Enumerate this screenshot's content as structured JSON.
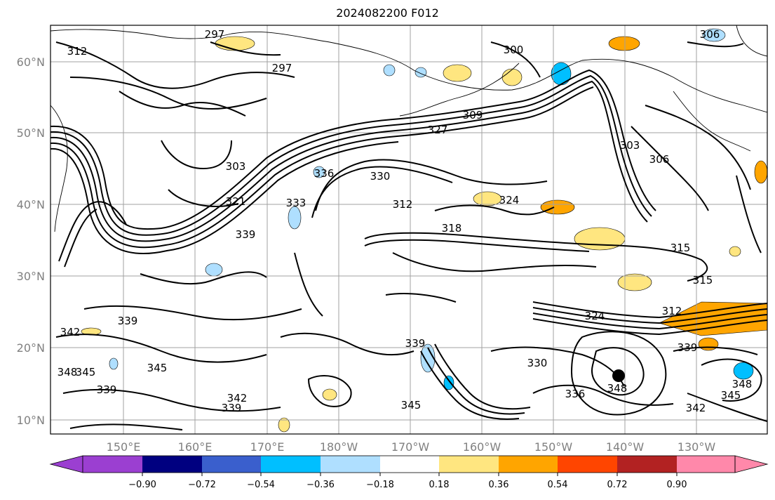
{
  "title": "2024082200 F012",
  "map": {
    "lat_labels": [
      "60°N",
      "50°N",
      "40°N",
      "30°N",
      "20°N",
      "10°N"
    ],
    "lon_labels": [
      "150°E",
      "160°E",
      "170°E",
      "180°W",
      "170°W",
      "160°W",
      "150°W",
      "140°W",
      "130°W"
    ],
    "contour_labels": [
      "297",
      "312",
      "297",
      "306",
      "300",
      "309",
      "327",
      "303",
      "306",
      "303",
      "321",
      "336",
      "333",
      "339",
      "330",
      "312",
      "318",
      "324",
      "315",
      "315",
      "312",
      "324",
      "339",
      "342",
      "339",
      "345",
      "348",
      "345",
      "339",
      "342",
      "339",
      "345",
      "330",
      "336",
      "348",
      "348",
      "345",
      "342",
      "339"
    ]
  },
  "colorbar": {
    "ticks": [
      "−0.90",
      "−0.72",
      "−0.54",
      "−0.36",
      "−0.18",
      "0.18",
      "0.36",
      "0.54",
      "0.72",
      "0.90"
    ],
    "colors": [
      "#9b3fd1",
      "#000080",
      "#3a5fcd",
      "#00bfff",
      "#afdfff",
      "#ffffff",
      "#ffe680",
      "#ffa500",
      "#ff4500",
      "#b22222",
      "#ff88aa"
    ]
  },
  "colors": {
    "contour": "#000000",
    "grid": "#a0a0a0",
    "coast": "#000000"
  }
}
